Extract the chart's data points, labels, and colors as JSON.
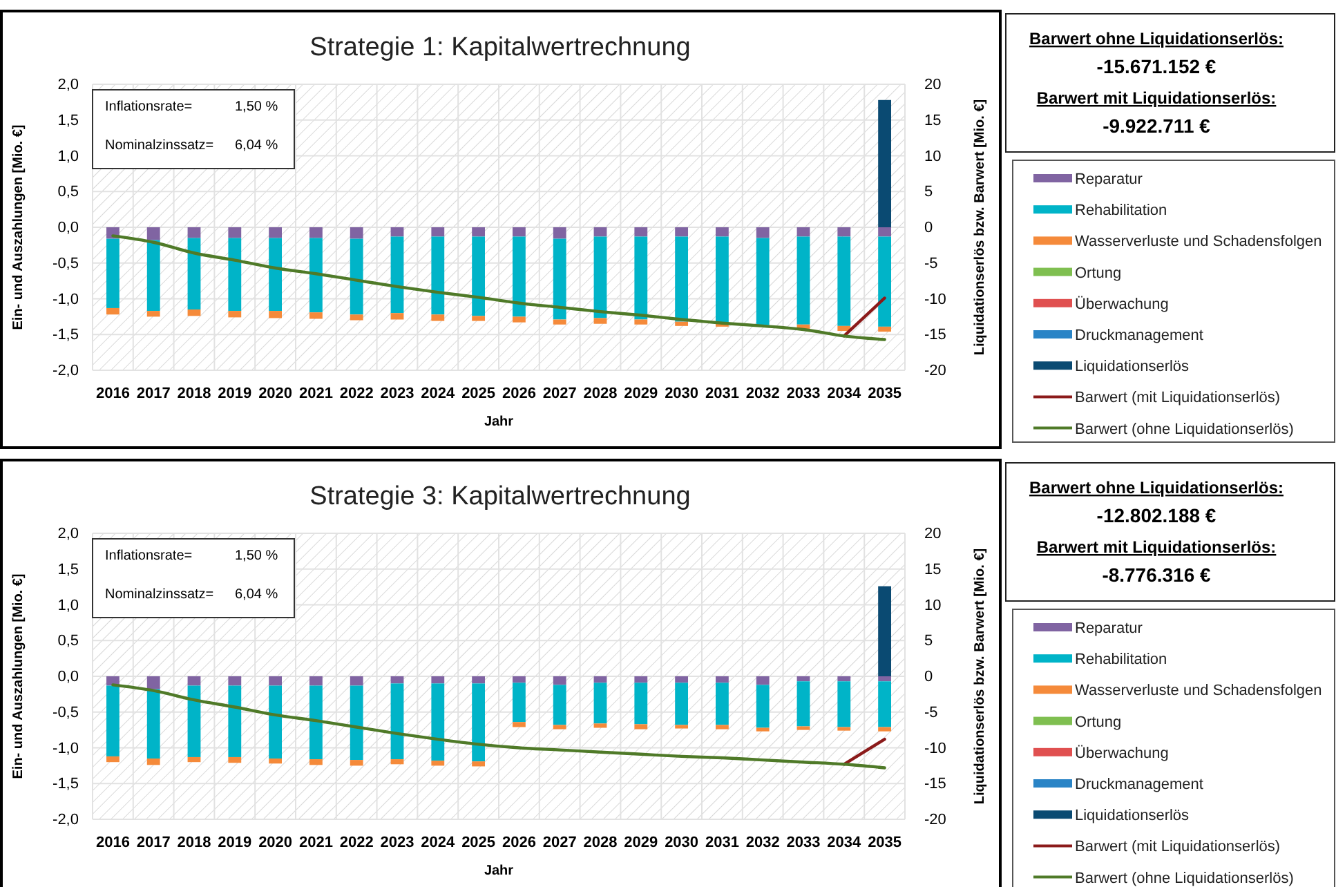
{
  "chart_data": [
    {
      "type": "bar",
      "stacked": true,
      "title": "Strategie 1: Kapitalwertrechnung",
      "xlabel": "Jahr",
      "ylabel": "Ein- und Auszahlungen [Mio. €]",
      "y2label": "Liquidationserlös bzw. Barwert [Mio. €]",
      "categories": [
        "2016",
        "2017",
        "2018",
        "2019",
        "2020",
        "2021",
        "2022",
        "2023",
        "2024",
        "2025",
        "2026",
        "2027",
        "2028",
        "2029",
        "2030",
        "2031",
        "2032",
        "2033",
        "2034",
        "2035"
      ],
      "ylim": [
        -2,
        2
      ],
      "yticks": [
        {
          "value": -2,
          "label": "-2,0"
        },
        {
          "value": -1.5,
          "label": "-1,5"
        },
        {
          "value": -1,
          "label": "-1,0"
        },
        {
          "value": -0.5,
          "label": "-0,5"
        },
        {
          "value": 0,
          "label": "0,0"
        },
        {
          "value": 0.5,
          "label": "0,5"
        },
        {
          "value": 1,
          "label": "1,0"
        },
        {
          "value": 1.5,
          "label": "1,5"
        },
        {
          "value": 2,
          "label": "2,0"
        }
      ],
      "y2lim": [
        -20,
        20
      ],
      "y2ticks": [
        -20,
        -15,
        -10,
        -5,
        0,
        5,
        10,
        15,
        20
      ],
      "grid": true,
      "legend": "right",
      "annotations": [
        "Inflationsrate=",
        "1,50 %",
        "Nominalzinssatz=",
        "6,04 %",
        "Barwert ohne Liquidationserlös:",
        "-15.671.152 €",
        "Barwert mit Liquidationserlös:",
        "-9.922.711 €"
      ],
      "series": [
        {
          "name": "Reparatur",
          "color": "#8064a2",
          "values": [
            -0.16,
            -0.18,
            -0.15,
            -0.15,
            -0.15,
            -0.15,
            -0.16,
            -0.13,
            -0.13,
            -0.13,
            -0.13,
            -0.16,
            -0.13,
            -0.13,
            -0.13,
            -0.13,
            -0.15,
            -0.13,
            -0.13,
            -0.13
          ]
        },
        {
          "name": "Rehabilitation",
          "color": "#00b4c8",
          "values": [
            -0.97,
            -0.99,
            -1.0,
            -1.02,
            -1.02,
            -1.04,
            -1.06,
            -1.07,
            -1.09,
            -1.11,
            -1.12,
            -1.13,
            -1.14,
            -1.16,
            -1.19,
            -1.21,
            -1.22,
            -1.23,
            -1.25,
            -1.26
          ]
        },
        {
          "name": "Wasserverluste und Schadensfolgen",
          "color": "#f58a3a",
          "values": [
            -0.09,
            -0.08,
            -0.09,
            -0.09,
            -0.1,
            -0.09,
            -0.08,
            -0.09,
            -0.09,
            -0.07,
            -0.08,
            -0.07,
            -0.08,
            -0.07,
            -0.06,
            -0.05,
            null,
            -0.07,
            -0.07,
            -0.07
          ]
        },
        {
          "name": "Ortung",
          "color": "#7fbf50",
          "values": [
            0,
            0,
            0,
            0,
            0,
            0,
            0,
            0,
            0,
            0,
            0,
            0,
            0,
            0,
            0,
            0,
            0,
            0,
            0,
            0
          ]
        },
        {
          "name": "Überwachung",
          "color": "#e05050",
          "values": [
            0,
            0,
            0,
            0,
            0,
            0,
            0,
            0,
            0,
            0,
            0,
            0,
            0,
            0,
            0,
            0,
            0,
            0,
            0,
            0
          ]
        },
        {
          "name": "Druckmanagement",
          "color": "#2a84c6",
          "values": [
            0,
            0,
            0,
            0,
            0,
            0,
            0,
            0,
            0,
            0,
            0,
            0,
            0,
            0,
            0,
            0,
            0,
            0,
            0,
            0
          ]
        },
        {
          "name": "Liquidationserlös",
          "color": "#0a4a72",
          "values": [
            0,
            0,
            0,
            0,
            0,
            0,
            0,
            0,
            0,
            0,
            0,
            0,
            0,
            0,
            0,
            0,
            0,
            0,
            0,
            1.78
          ]
        },
        {
          "name": "Barwert (mit Liquidationserlös)",
          "color": "#8b1a1a",
          "type": "line",
          "axis": "y2",
          "values": [
            null,
            null,
            null,
            null,
            null,
            null,
            null,
            null,
            null,
            null,
            null,
            null,
            null,
            null,
            null,
            null,
            null,
            null,
            -15.2,
            -9.9
          ]
        },
        {
          "name": "Barwert (ohne Liquidationserlös)",
          "color": "#4f7a28",
          "type": "line",
          "axis": "y2",
          "values": [
            -1.2,
            -2.1,
            -3.6,
            -4.6,
            -5.7,
            -6.5,
            -7.4,
            -8.3,
            -9.1,
            -9.8,
            -10.6,
            -11.2,
            -11.8,
            -12.3,
            -12.9,
            -13.4,
            -13.8,
            -14.3,
            -15.2,
            -15.7
          ]
        }
      ]
    },
    {
      "type": "bar",
      "stacked": true,
      "title": "Strategie 3: Kapitalwertrechnung",
      "xlabel": "Jahr",
      "ylabel": "Ein- und Auszahlungen [Mio. €]",
      "y2label": "Liquidationserlös bzw. Barwert [Mio. €]",
      "categories": [
        "2016",
        "2017",
        "2018",
        "2019",
        "2020",
        "2021",
        "2022",
        "2023",
        "2024",
        "2025",
        "2026",
        "2027",
        "2028",
        "2029",
        "2030",
        "2031",
        "2032",
        "2033",
        "2034",
        "2035"
      ],
      "ylim": [
        -2,
        2
      ],
      "yticks": [
        {
          "value": -2,
          "label": "-2,0"
        },
        {
          "value": -1.5,
          "label": "-1,5"
        },
        {
          "value": -1,
          "label": "-1,0"
        },
        {
          "value": -0.5,
          "label": "-0,5"
        },
        {
          "value": 0,
          "label": "0,0"
        },
        {
          "value": 0.5,
          "label": "0,5"
        },
        {
          "value": 1,
          "label": "1,0"
        },
        {
          "value": 1.5,
          "label": "1,5"
        },
        {
          "value": 2,
          "label": "2,0"
        }
      ],
      "y2lim": [
        -20,
        20
      ],
      "y2ticks": [
        -20,
        -15,
        -10,
        -5,
        0,
        5,
        10,
        15,
        20
      ],
      "grid": true,
      "legend": "right",
      "annotations": [
        "Inflationsrate=",
        "1,50 %",
        "Nominalzinssatz=",
        "6,04 %",
        "Barwert ohne Liquidationserlös:",
        "-12.802.188 €",
        "Barwert mit Liquidationserlös:",
        "-8.776.316 €"
      ],
      "series": [
        {
          "name": "Reparatur",
          "color": "#8064a2",
          "values": [
            -0.13,
            -0.18,
            -0.13,
            -0.13,
            -0.13,
            -0.13,
            -0.13,
            -0.1,
            -0.1,
            -0.1,
            -0.09,
            -0.12,
            -0.09,
            -0.09,
            -0.09,
            -0.09,
            -0.12,
            -0.07,
            -0.07,
            -0.07
          ]
        },
        {
          "name": "Rehabilitation",
          "color": "#00b4c8",
          "values": [
            -0.99,
            -0.97,
            -1.0,
            -1.0,
            -1.02,
            -1.03,
            -1.04,
            -1.06,
            -1.08,
            -1.09,
            -0.55,
            -0.56,
            -0.57,
            -0.58,
            -0.59,
            -0.59,
            -0.6,
            -0.63,
            -0.64,
            -0.64
          ]
        },
        {
          "name": "Wasserverluste und Schadensfolgen",
          "color": "#f58a3a",
          "values": [
            -0.08,
            -0.09,
            -0.07,
            -0.08,
            -0.07,
            -0.08,
            -0.08,
            -0.07,
            -0.07,
            -0.07,
            -0.07,
            -0.06,
            -0.06,
            -0.07,
            -0.05,
            -0.06,
            -0.05,
            -0.05,
            -0.05,
            -0.06
          ]
        },
        {
          "name": "Ortung",
          "color": "#7fbf50",
          "values": [
            0,
            0,
            0,
            0,
            0,
            0,
            0,
            0,
            0,
            0,
            0,
            0,
            0,
            0,
            0,
            0,
            0,
            0,
            0,
            0
          ]
        },
        {
          "name": "Überwachung",
          "color": "#e05050",
          "values": [
            0,
            0,
            0,
            0,
            0,
            0,
            0,
            0,
            0,
            0,
            0,
            0,
            0,
            0,
            0,
            0,
            0,
            0,
            0,
            0
          ]
        },
        {
          "name": "Druckmanagement",
          "color": "#2a84c6",
          "values": [
            0,
            0,
            0,
            0,
            0,
            0,
            0,
            0,
            0,
            0,
            0,
            0,
            0,
            0,
            0,
            0,
            0,
            0,
            0,
            0
          ]
        },
        {
          "name": "Liquidationserlös",
          "color": "#0a4a72",
          "values": [
            0,
            0,
            0,
            0,
            0,
            0,
            0,
            0,
            0,
            0,
            0,
            0,
            0,
            0,
            0,
            0,
            0,
            0,
            0,
            1.26
          ]
        },
        {
          "name": "Barwert (mit Liquidationserlös)",
          "color": "#8b1a1a",
          "type": "line",
          "axis": "y2",
          "values": [
            null,
            null,
            null,
            null,
            null,
            null,
            null,
            null,
            null,
            null,
            null,
            null,
            null,
            null,
            null,
            null,
            null,
            null,
            -12.3,
            -8.8
          ]
        },
        {
          "name": "Barwert (ohne Liquidationserlös)",
          "color": "#4f7a28",
          "type": "line",
          "axis": "y2",
          "values": [
            -1.2,
            -2.0,
            -3.3,
            -4.3,
            -5.4,
            -6.2,
            -7.1,
            -8.0,
            -8.8,
            -9.5,
            -10.0,
            -10.3,
            -10.6,
            -10.9,
            -11.2,
            -11.4,
            -11.7,
            -12.0,
            -12.3,
            -12.8
          ]
        }
      ]
    }
  ]
}
